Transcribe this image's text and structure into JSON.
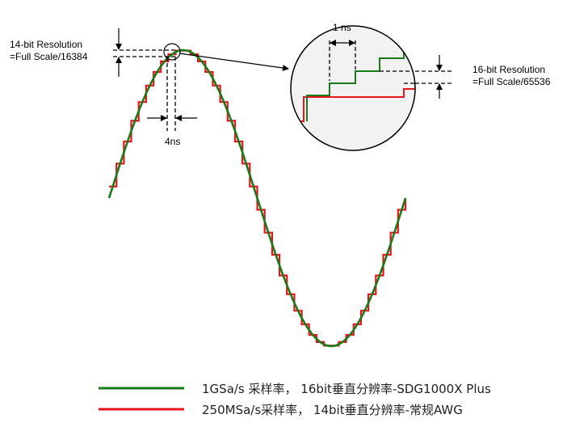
{
  "annotations": {
    "res14_title": "14-bit Resolution",
    "res14_formula": "=Full Scale/16384",
    "step_time_14": "4ns",
    "step_time_16": "1 ns",
    "res16_title": "16-bit Resolution",
    "res16_formula": "=Full Scale/65536"
  },
  "legend": {
    "items": [
      {
        "label": "1GSa/s 采样率， 16bit垂直分辨率-SDG1000X Plus",
        "color": "#1a7a1a"
      },
      {
        "label": "250MSa/s采样率， 14bit垂直分辨率-常规AWG",
        "color": "#e8141c"
      }
    ]
  }
}
